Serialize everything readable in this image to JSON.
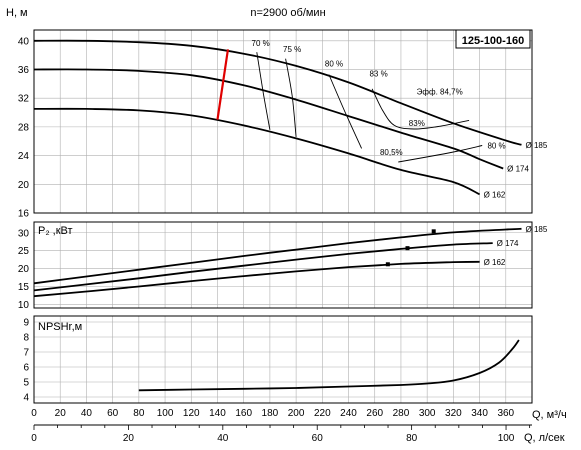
{
  "chart_data": {
    "type": "line",
    "title": "n=2900 об/мин",
    "model": "125-100-160",
    "x_axes": {
      "flow_m3h": {
        "label": "Q, м³/ч",
        "range": [
          0,
          380
        ],
        "ticks": [
          0,
          20,
          40,
          60,
          80,
          100,
          120,
          140,
          160,
          180,
          200,
          220,
          240,
          260,
          280,
          300,
          320,
          340,
          360
        ]
      },
      "flow_ls": {
        "label": "Q, л/сек",
        "range": [
          0,
          105.5
        ],
        "ticks": [
          0,
          20,
          40,
          60,
          80,
          100
        ]
      }
    },
    "panels": [
      {
        "id": "head",
        "ylabel": "H, м",
        "ylim": [
          16,
          41.5
        ],
        "yticks": [
          16,
          20,
          24,
          28,
          32,
          36,
          40
        ],
        "series": [
          {
            "name": "Ø 185",
            "x": [
              0,
              40,
              80,
              120,
              160,
              200,
              240,
              280,
              320,
              360,
              372
            ],
            "y": [
              40,
              40,
              39.8,
              39.3,
              38.2,
              36.5,
              34.2,
              31.3,
              28.5,
              26.1,
              25.5
            ]
          },
          {
            "name": "Ø 174",
            "x": [
              0,
              40,
              80,
              120,
              160,
              200,
              240,
              280,
              320,
              340,
              358
            ],
            "y": [
              36,
              36,
              35.8,
              35.2,
              33.8,
              31.8,
              29.5,
              27.2,
              25,
              23.5,
              22.2
            ]
          },
          {
            "name": "Ø 162",
            "x": [
              0,
              40,
              80,
              120,
              160,
              200,
              240,
              280,
              320,
              340
            ],
            "y": [
              30.5,
              30.5,
              30.3,
              29.6,
              28.2,
              26.4,
              24.3,
              22,
              20.3,
              18.6
            ]
          }
        ],
        "efficiency_labels": [
          "70 %",
          "75 %",
          "80 %",
          "83 %",
          "Эфф. 84,7%",
          "83%",
          "80,5%",
          "80 %"
        ]
      },
      {
        "id": "power",
        "ylabel": "P₂ ,кВт",
        "ylim": [
          9,
          33
        ],
        "yticks": [
          10,
          15,
          20,
          25,
          30
        ],
        "series": [
          {
            "name": "Ø 185",
            "x": [
              0,
              40,
              80,
              120,
              160,
              200,
              240,
              280,
              320,
              360,
              372
            ],
            "y": [
              15.9,
              17.8,
              19.7,
              21.6,
              23.5,
              25.3,
              27.1,
              28.7,
              30.1,
              30.9,
              31.1
            ]
          },
          {
            "name": "Ø 174",
            "x": [
              0,
              40,
              80,
              120,
              160,
              200,
              240,
              280,
              320,
              350
            ],
            "y": [
              13.9,
              15.6,
              17.3,
              19.1,
              20.8,
              22.5,
              24.1,
              25.5,
              26.7,
              27.1
            ]
          },
          {
            "name": "Ø 162",
            "x": [
              0,
              40,
              80,
              120,
              160,
              200,
              240,
              280,
              320,
              340
            ],
            "y": [
              12.3,
              13.6,
              15,
              16.5,
              17.9,
              19.2,
              20.4,
              21.3,
              21.8,
              21.9
            ]
          }
        ]
      },
      {
        "id": "npsh",
        "ylabel": "NPSHr,м",
        "ylim": [
          3.6,
          9.4
        ],
        "yticks": [
          4,
          5,
          6,
          7,
          8,
          9
        ],
        "series": [
          {
            "name": "NPSHr",
            "x": [
              80,
              120,
              160,
              200,
              240,
              280,
              300,
              320,
              340,
              355,
              365,
              370
            ],
            "y": [
              4.45,
              4.5,
              4.55,
              4.6,
              4.7,
              4.8,
              4.9,
              5.1,
              5.6,
              6.3,
              7.2,
              7.8
            ]
          }
        ]
      }
    ],
    "grid": true
  }
}
